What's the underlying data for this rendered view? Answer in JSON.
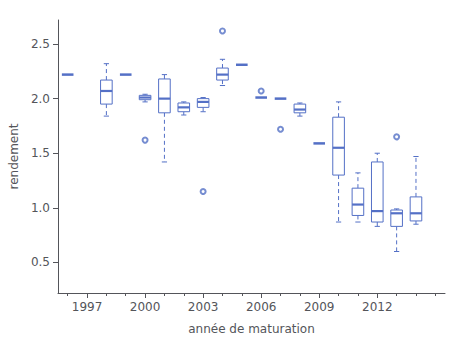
{
  "chart_data": {
    "type": "boxplot",
    "xlabel": "année de maturation",
    "ylabel": "rendement",
    "xlim": [
      1995.5,
      2015.5
    ],
    "ylim": [
      0.22,
      2.72
    ],
    "xticks": [
      1997,
      2000,
      2003,
      2006,
      2009,
      2012
    ],
    "xticks_minor": [
      1996,
      1997,
      1998,
      1999,
      2000,
      2001,
      2002,
      2003,
      2004,
      2005,
      2006,
      2007,
      2008,
      2009,
      2010,
      2011,
      2012,
      2013,
      2014,
      2015
    ],
    "yticks": [
      0.5,
      {
        "value": 1.0,
        "label": "1.0"
      },
      1.5,
      {
        "value": 2.0,
        "label": "2.0"
      },
      2.5
    ],
    "grid": false,
    "boxes": [
      {
        "x": 1998,
        "whislo": 1.84,
        "q1": 1.95,
        "med": 2.07,
        "q3": 2.17,
        "whishi": 2.32
      },
      {
        "x": 2000,
        "whislo": 1.97,
        "q1": 1.99,
        "med": 2.01,
        "q3": 2.03,
        "whishi": 2.04
      },
      {
        "x": 2001,
        "whislo": 1.42,
        "q1": 1.87,
        "med": 2.0,
        "q3": 2.18,
        "whishi": 2.22
      },
      {
        "x": 2002,
        "whislo": 1.85,
        "q1": 1.88,
        "med": 1.92,
        "q3": 1.96,
        "whishi": 1.97
      },
      {
        "x": 2003,
        "whislo": 1.88,
        "q1": 1.92,
        "med": 1.97,
        "q3": 2.0,
        "whishi": 2.01
      },
      {
        "x": 2004,
        "whislo": 2.12,
        "q1": 2.17,
        "med": 2.22,
        "q3": 2.28,
        "whishi": 2.36
      },
      {
        "x": 2008,
        "whislo": 1.84,
        "q1": 1.87,
        "med": 1.9,
        "q3": 1.95,
        "whishi": 1.96
      },
      {
        "x": 2010,
        "whislo": 0.87,
        "q1": 1.3,
        "med": 1.55,
        "q3": 1.83,
        "whishi": 1.97
      },
      {
        "x": 2011,
        "whislo": 0.87,
        "q1": 0.93,
        "med": 1.03,
        "q3": 1.18,
        "whishi": 1.32
      },
      {
        "x": 2012,
        "whislo": 0.83,
        "q1": 0.87,
        "med": 0.97,
        "q3": 1.42,
        "whishi": 1.5
      },
      {
        "x": 2013,
        "whislo": 0.6,
        "q1": 0.83,
        "med": 0.95,
        "q3": 0.98,
        "whishi": 0.99
      },
      {
        "x": 2014,
        "whislo": 0.85,
        "q1": 0.88,
        "med": 0.95,
        "q3": 1.1,
        "whishi": 1.47
      }
    ],
    "medians_only": [
      {
        "x": 1996,
        "med": 2.22
      },
      {
        "x": 1999,
        "med": 2.22
      },
      {
        "x": 2005,
        "med": 2.31
      },
      {
        "x": 2006,
        "med": 2.01
      },
      {
        "x": 2007,
        "med": 2.0
      },
      {
        "x": 2009,
        "med": 1.59
      }
    ],
    "fliers": [
      {
        "x": 2000,
        "y": 1.62
      },
      {
        "x": 2003,
        "y": 1.15
      },
      {
        "x": 2004,
        "y": 2.62
      },
      {
        "x": 2006,
        "y": 2.07
      },
      {
        "x": 2007,
        "y": 1.72
      },
      {
        "x": 2013,
        "y": 1.65
      }
    ]
  }
}
